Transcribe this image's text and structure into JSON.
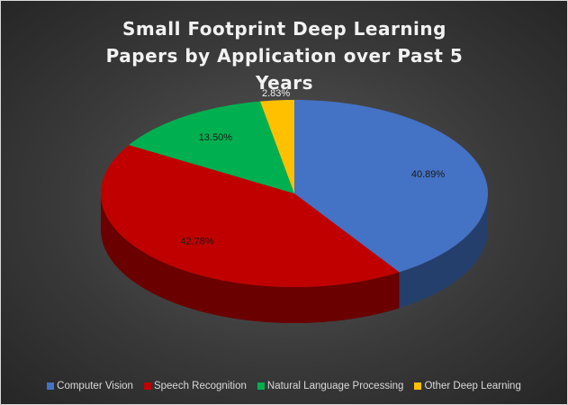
{
  "chart_data": {
    "type": "pie",
    "title": "Small Footprint Deep Learning Papers by Application over Past 5 Years",
    "categories": [
      "Computer Vision",
      "Speech Recognition",
      "Natural Language Processing",
      "Other Deep Learning"
    ],
    "values": [
      40.89,
      42.78,
      13.5,
      2.83
    ],
    "value_labels": [
      "40.89%",
      "42.78%",
      "13.50%",
      "2.83%"
    ],
    "colors": [
      "#4472c4",
      "#c00000",
      "#00b050",
      "#ffc000"
    ],
    "legend": "bottom"
  }
}
